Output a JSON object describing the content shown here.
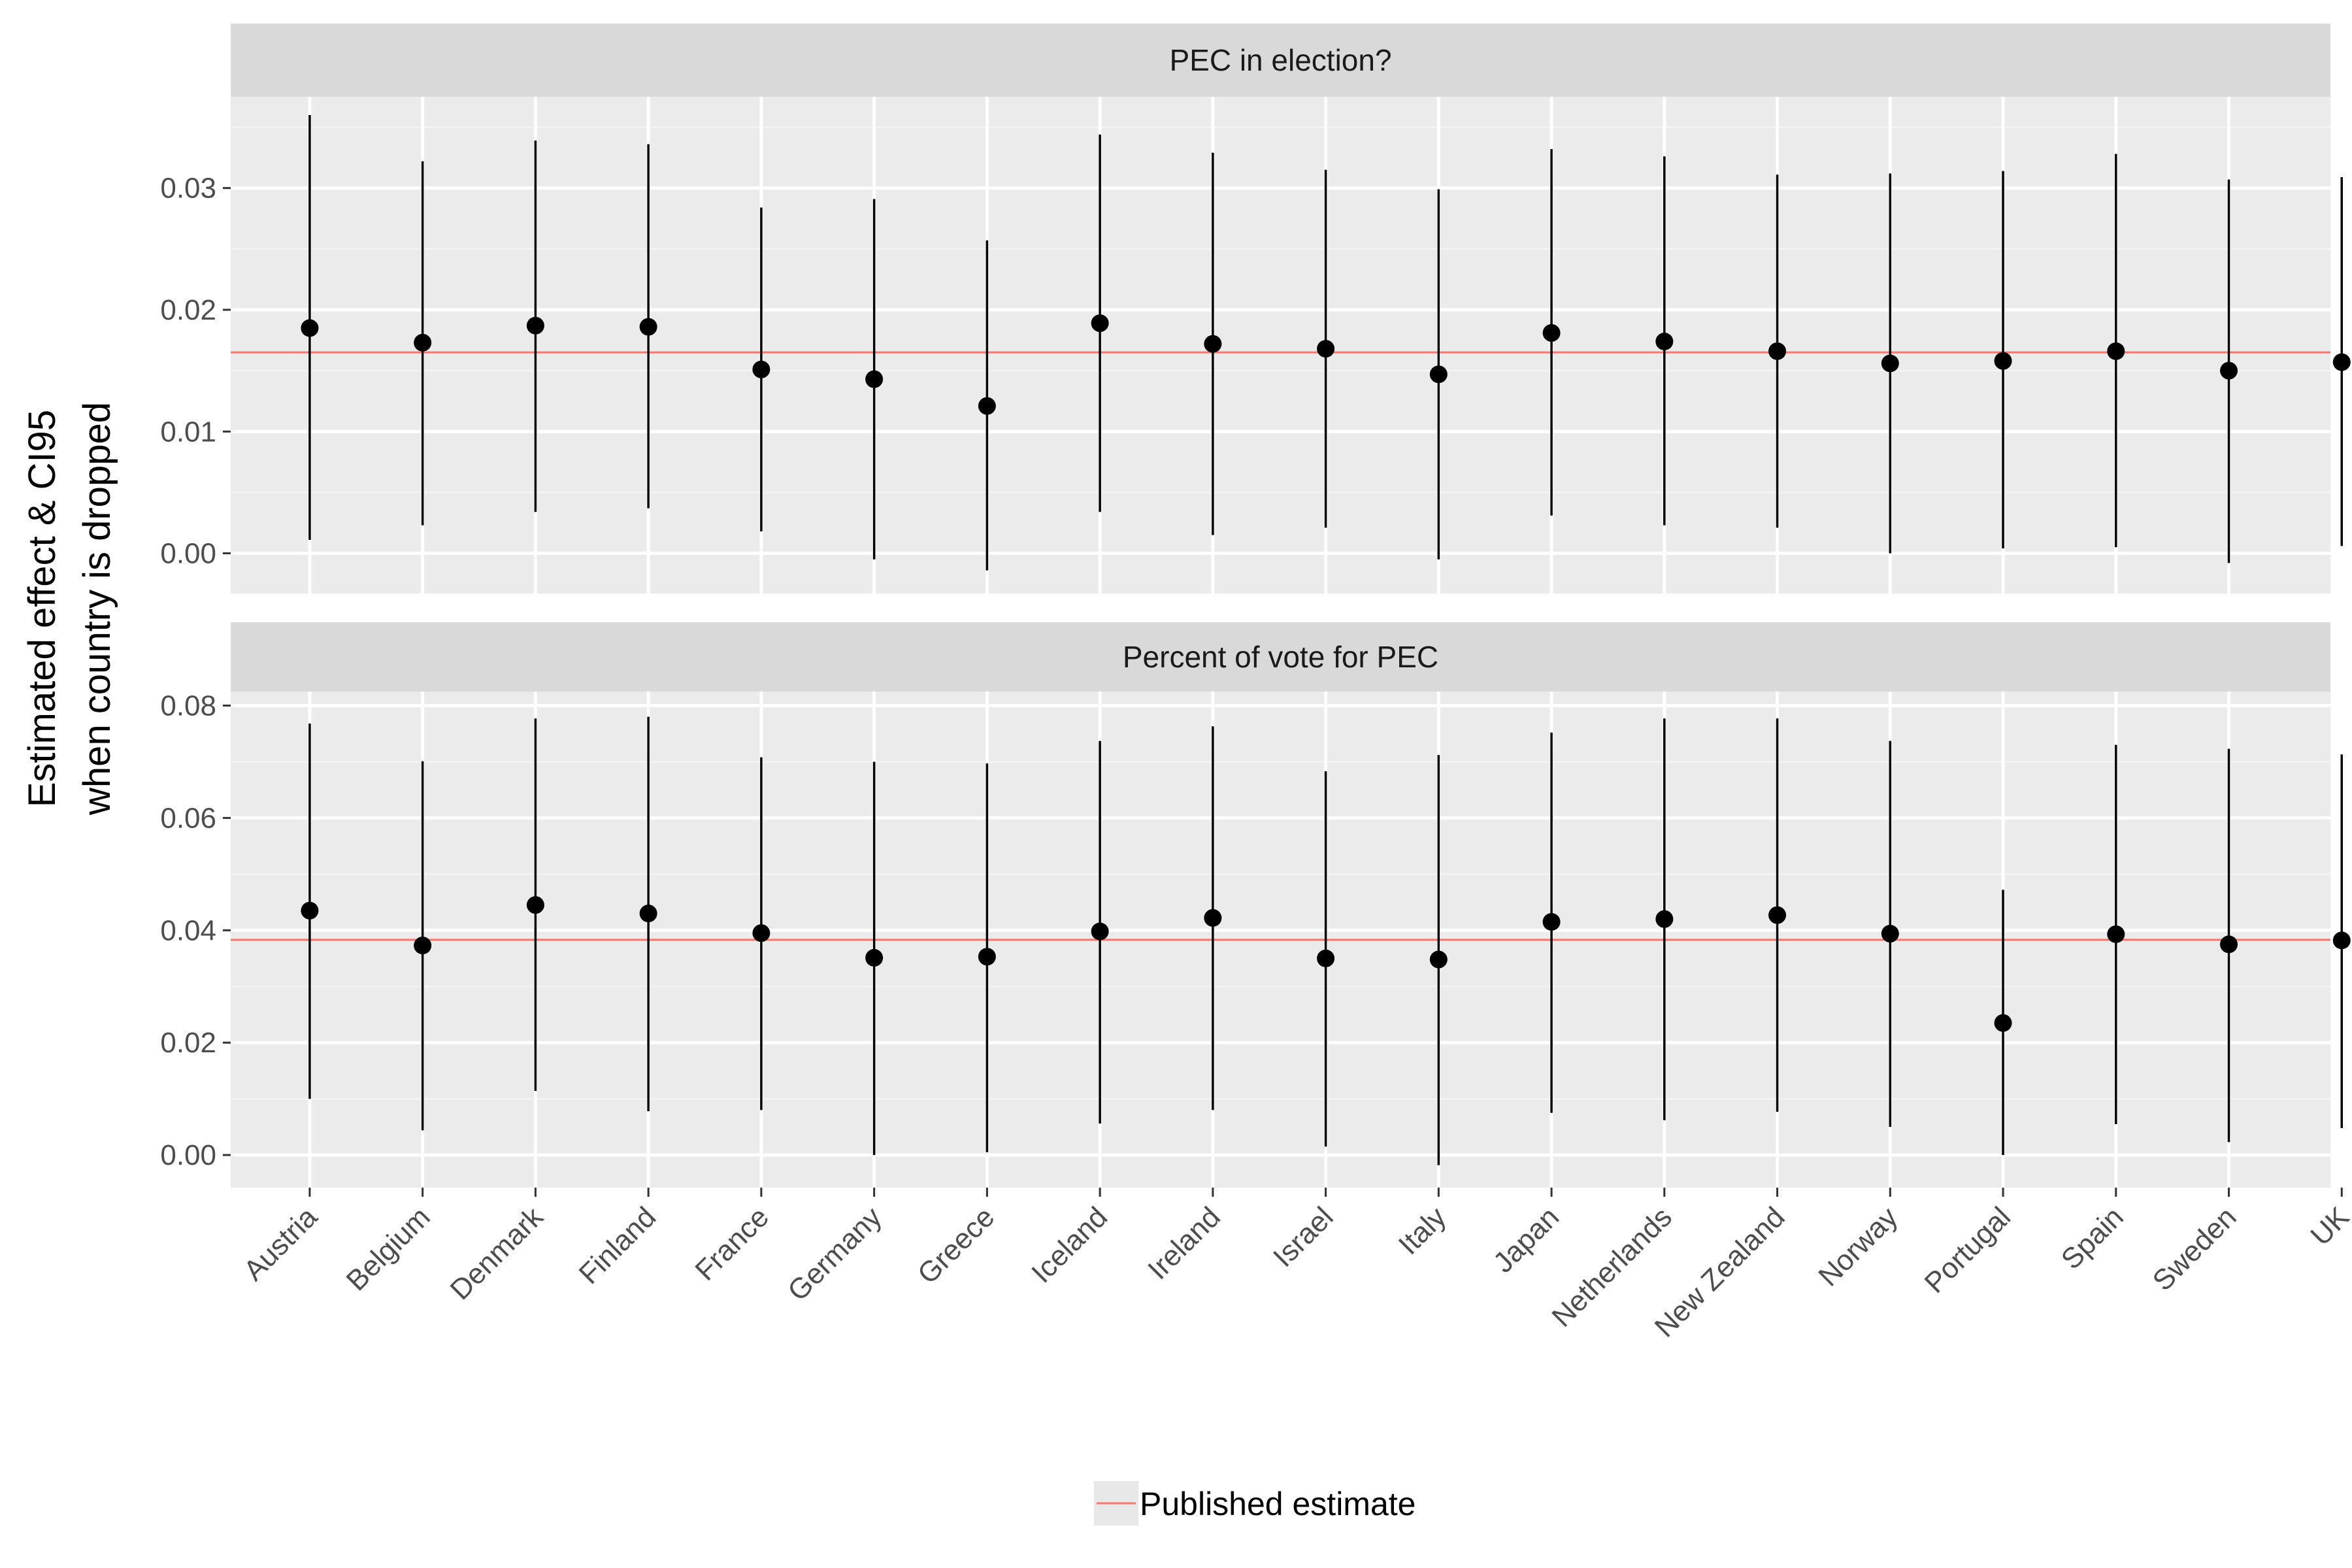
{
  "chart_data": {
    "type": "scatter",
    "description_type": "point estimates with 95% confidence interval error bars, faceted",
    "ylabel_lines": [
      "Estimated effect & CI95",
      "when country is dropped"
    ],
    "xlabel": "",
    "categories": [
      "Austria",
      "Belgium",
      "Denmark",
      "Finland",
      "France",
      "Germany",
      "Greece",
      "Iceland",
      "Ireland",
      "Israel",
      "Italy",
      "Japan",
      "Netherlands",
      "New Zealand",
      "Norway",
      "Portugal",
      "Spain",
      "Sweden",
      "UK"
    ],
    "legend": {
      "position": "bottom",
      "entries": [
        {
          "label": "Published estimate",
          "color": "#F8766D"
        }
      ]
    },
    "grid": true,
    "facets": [
      {
        "title": "PEC in election?",
        "ylim": [
          -0.0033,
          0.0375
        ],
        "yticks": [
          0.0,
          0.01,
          0.02,
          0.03
        ],
        "ytick_labels": [
          "0.00",
          "0.01",
          "0.02",
          "0.03"
        ],
        "reference_line": 0.0165,
        "estimates": [
          0.0185,
          0.0173,
          0.0187,
          0.0186,
          0.0151,
          0.0143,
          0.0121,
          0.0189,
          0.0172,
          0.0168,
          0.0147,
          0.0181,
          0.0174,
          0.0166,
          0.0156,
          0.0158,
          0.0166,
          0.015,
          0.0157
        ],
        "ci_low": [
          0.0011,
          0.0023,
          0.0034,
          0.0037,
          0.0018,
          -0.0005,
          -0.0014,
          0.0034,
          0.0015,
          0.0021,
          -0.0005,
          0.0031,
          0.0023,
          0.0021,
          0.0,
          0.0004,
          0.0005,
          -0.0008,
          0.0006
        ],
        "ci_high": [
          0.036,
          0.0322,
          0.0339,
          0.0336,
          0.0284,
          0.0291,
          0.0257,
          0.0344,
          0.0329,
          0.0315,
          0.0299,
          0.0332,
          0.0326,
          0.0311,
          0.0312,
          0.0314,
          0.0328,
          0.0307,
          0.0309
        ]
      },
      {
        "title": "Percent of vote for PEC",
        "ylim": [
          -0.0058,
          0.0825
        ],
        "yticks": [
          0.0,
          0.02,
          0.04,
          0.06,
          0.08
        ],
        "ytick_labels": [
          "0.00",
          "0.02",
          "0.04",
          "0.06",
          "0.08"
        ],
        "reference_line": 0.0383,
        "estimates": [
          0.0435,
          0.0373,
          0.0445,
          0.043,
          0.0395,
          0.0351,
          0.0353,
          0.0398,
          0.0422,
          0.035,
          0.0348,
          0.0415,
          0.042,
          0.0427,
          0.0394,
          0.0235,
          0.0393,
          0.0375,
          0.0382
        ],
        "ci_low": [
          0.01,
          0.0044,
          0.0114,
          0.0078,
          0.008,
          0.0,
          0.0005,
          0.0056,
          0.008,
          0.0015,
          -0.0018,
          0.0075,
          0.0062,
          0.0077,
          0.005,
          0.0,
          0.0055,
          0.0023,
          0.0048
        ],
        "ci_high": [
          0.0768,
          0.0701,
          0.0777,
          0.078,
          0.0708,
          0.07,
          0.0697,
          0.0737,
          0.0763,
          0.0683,
          0.0712,
          0.0752,
          0.0777,
          0.0777,
          0.0737,
          0.0472,
          0.073,
          0.0723,
          0.0713
        ]
      }
    ]
  }
}
